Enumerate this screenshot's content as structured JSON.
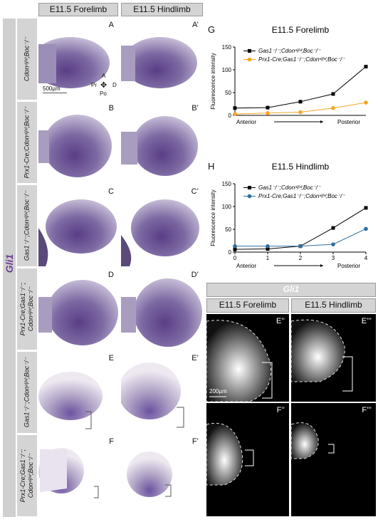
{
  "headers": {
    "forelimb": "E11.5 Forelimb",
    "hindlimb": "E11.5 Hindlimb"
  },
  "side_label": "Gli1",
  "rows": [
    {
      "genotype": "Cdonⁿˡ/ⁿˡ;Boc⁻/⁻",
      "left": "A",
      "right": "A’"
    },
    {
      "genotype": "Prx1-Cre;Cdonⁿˡ/ⁿˡ;Boc⁻/⁻",
      "left": "B",
      "right": "B’"
    },
    {
      "genotype": "Gas1⁻/⁻;Cdonⁿˡ/ⁿˡ;Boc⁻/⁻",
      "left": "C",
      "right": "C’"
    },
    {
      "genotype": "Prx1-Cre;Gas1⁻/⁻; Cdonⁿˡ/ⁿˡ;Boc⁻/⁻",
      "left": "D",
      "right": "D’"
    },
    {
      "genotype": "Gas1⁻/⁻;Cdonⁿˡ/ⁿˡ;Boc⁻/⁻",
      "left": "E",
      "right": "E’"
    },
    {
      "genotype": "Prx1-Cre;Gas1⁻/⁻; Cdonⁿˡ/ⁿˡ;Boc⁻/⁻",
      "left": "F",
      "right": "F’"
    }
  ],
  "compass": {
    "a": "A",
    "pr": "Pr",
    "d": "D",
    "po": "Po"
  },
  "scale_bar_left": "500µm",
  "scale_bar_right": "200µm",
  "fluor": {
    "title": "Gli1",
    "forelimb": "E11.5 Forelimb",
    "hindlimb": "E11.5 Hindlimb",
    "labels": {
      "e1": "E’’",
      "e2": "E’’’",
      "f1": "F’’",
      "f2": "F’’’"
    }
  },
  "colors": {
    "series1": "#000000",
    "series_g2": "#f5a623",
    "series_h2": "#2f6fa0",
    "accent": "#6b3f91"
  },
  "chart_data": [
    {
      "type": "line",
      "panel": "G",
      "title": "E11.5 Forelimb",
      "ylabel": "Fluorescence intensity",
      "xlabel_left": "Anterior",
      "xlabel_right": "Posterior",
      "x": [
        0,
        1,
        2,
        3,
        4
      ],
      "xticks_shown": false,
      "ylim": [
        0,
        150
      ],
      "yticks": [
        0,
        50,
        100,
        150
      ],
      "series": [
        {
          "name": "Gas1⁻/⁻;Cdonⁿˡ/ⁿˡ;Boc⁻/⁻",
          "marker": "square",
          "values": [
            16,
            17,
            30,
            47,
            107
          ]
        },
        {
          "name": "Prx1-Cre;Gas1⁻/⁻;Cdonⁿˡ/ⁿˡ;Boc⁻/⁻",
          "marker": "circle",
          "values": [
            3,
            5,
            7,
            16,
            28
          ]
        }
      ]
    },
    {
      "type": "line",
      "panel": "H",
      "title": "E11.5 Hindlimb",
      "ylabel": "Fluorescence intensity",
      "xlabel_left": "Anterior",
      "xlabel_right": "Posterior",
      "x": [
        0,
        1,
        2,
        3,
        4
      ],
      "xticks_shown": true,
      "ylim": [
        0,
        150
      ],
      "yticks": [
        0,
        50,
        100,
        150
      ],
      "series": [
        {
          "name": "Gas1⁻/⁻;Cdonⁿˡ/ⁿˡ;Boc⁻/⁻",
          "marker": "square",
          "values": [
            6,
            7,
            13,
            53,
            97
          ]
        },
        {
          "name": "Prx1-Cre;Gas1⁻/⁻;Cdonⁿˡ/ⁿˡ;Boc⁻/⁻",
          "marker": "circle",
          "values": [
            13,
            13,
            13,
            17,
            51
          ]
        }
      ]
    }
  ]
}
